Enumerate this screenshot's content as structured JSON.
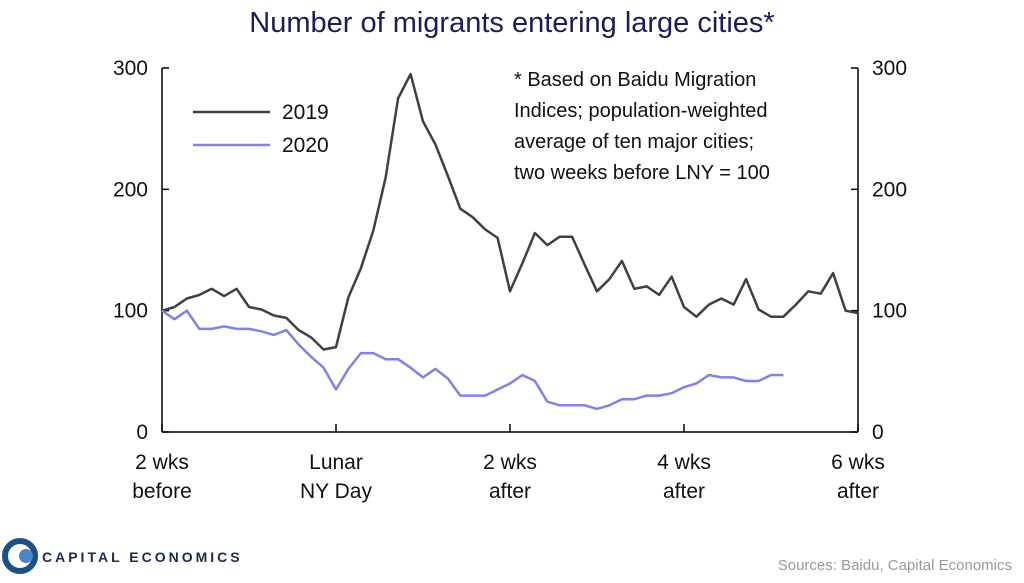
{
  "chart_data": {
    "type": "line",
    "title": "Number of migrants entering large cities*",
    "annotation": [
      "* Based on  Baidu Migration",
      "Indices;  population-weighted",
      "average of ten major cities;",
      "two weeks before LNY = 100"
    ],
    "x": [
      -14,
      -13,
      -12,
      -11,
      -10,
      -9,
      -8,
      -7,
      -6,
      -5,
      -4,
      -3,
      -2,
      -1,
      0,
      1,
      2,
      3,
      4,
      5,
      6,
      7,
      8,
      9,
      10,
      11,
      12,
      13,
      14,
      15,
      16,
      17,
      18,
      19,
      20,
      21,
      22,
      23,
      24,
      25,
      26,
      27,
      28,
      29,
      30,
      31,
      32,
      33,
      34,
      35,
      36,
      37,
      38,
      39,
      40,
      41,
      42
    ],
    "series": [
      {
        "name": "2019",
        "color": "#404040",
        "values": [
          100,
          103,
          110,
          113,
          118,
          112,
          118,
          103,
          101,
          96,
          94,
          84,
          78,
          68,
          70,
          111,
          135,
          166,
          210,
          275,
          295,
          256,
          237,
          211,
          184,
          177,
          167,
          160,
          116,
          139,
          164,
          154,
          161,
          161,
          138,
          116,
          126,
          141,
          118,
          120,
          113,
          128,
          103,
          95,
          105,
          110,
          105,
          126,
          101,
          95,
          95,
          105,
          116,
          114,
          131,
          100,
          98
        ]
      },
      {
        "name": "2020",
        "color": "#8080f0",
        "values": [
          100,
          93,
          100,
          85,
          85,
          87,
          85,
          85,
          83,
          80,
          84,
          72,
          62,
          53,
          35,
          52,
          65,
          65,
          60,
          60,
          53,
          45,
          52,
          44,
          30,
          30,
          30,
          35,
          40,
          47,
          42,
          25,
          22,
          22,
          22,
          19,
          22,
          27,
          27,
          30,
          30,
          32,
          37,
          40,
          47,
          45,
          45,
          42,
          42,
          47,
          47,
          null,
          null,
          null,
          null,
          null,
          null
        ]
      }
    ],
    "xlim": [
      -14,
      42
    ],
    "xticks": [
      {
        "value": -14,
        "label": "2 wks\nbefore"
      },
      {
        "value": 0,
        "label": "Lunar\nNY Day"
      },
      {
        "value": 14,
        "label": "2 wks\nafter"
      },
      {
        "value": 28,
        "label": "4 wks\nafter"
      },
      {
        "value": 42,
        "label": "6 wks\nafter"
      }
    ],
    "ylim": [
      0,
      300
    ],
    "yticks": [
      0,
      100,
      200,
      300
    ],
    "y2lim": [
      0,
      300
    ],
    "y2ticks": [
      0,
      100,
      200,
      300
    ],
    "legend": "upper left",
    "brand": "CAPITAL ECONOMICS",
    "source": "Sources: Baidu, Capital Economics"
  }
}
